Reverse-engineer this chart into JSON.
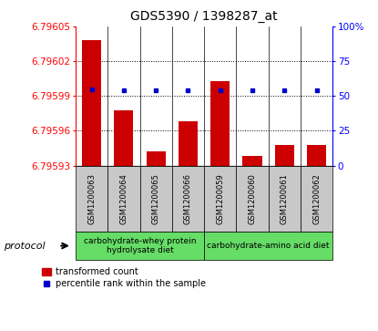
{
  "title": "GDS5390 / 1398287_at",
  "samples": [
    "GSM1200063",
    "GSM1200064",
    "GSM1200065",
    "GSM1200066",
    "GSM1200059",
    "GSM1200060",
    "GSM1200061",
    "GSM1200062"
  ],
  "red_values": [
    6.796038,
    6.795978,
    6.795942,
    6.795968,
    6.796003,
    6.795938,
    6.795948,
    6.795948
  ],
  "blue_pct": [
    55,
    54,
    54,
    54,
    54,
    54,
    54,
    54
  ],
  "ymin": 6.79593,
  "ymax": 6.79605,
  "yticks": [
    6.79593,
    6.79596,
    6.79599,
    6.79602,
    6.79605
  ],
  "ytick_labels": [
    "6.79593",
    "6.79596",
    "6.79599",
    "6.79602",
    "6.79605"
  ],
  "y2min": 0,
  "y2max": 100,
  "y2ticks": [
    0,
    25,
    50,
    75,
    100
  ],
  "y2tick_labels": [
    "0",
    "25",
    "50",
    "75",
    "100%"
  ],
  "group1_label": "carbohydrate-whey protein\nhydrolysate diet",
  "group2_label": "carbohydrate-amino acid diet",
  "group_color": "#66DD66",
  "protocol_label": "protocol",
  "legend_red": "transformed count",
  "legend_blue": "percentile rank within the sample",
  "bar_color": "#CC0000",
  "dot_color": "#0000CC",
  "sample_box_color": "#C8C8C8",
  "plot_bg": "#FFFFFF",
  "figsize": [
    4.15,
    3.63
  ],
  "dpi": 100
}
